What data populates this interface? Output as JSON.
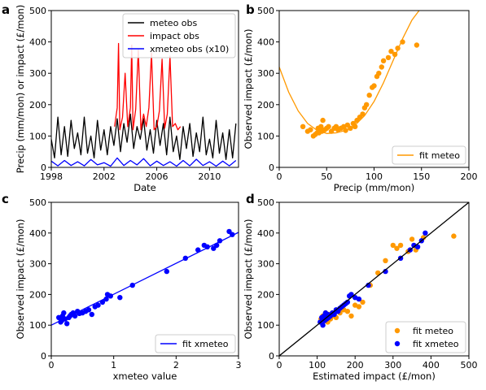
{
  "chart_data": [
    {
      "id": "a",
      "panel_label": "a",
      "type": "line",
      "xlabel": "Date",
      "ylabel": "Precip (mm/mon) or impact (£/mon)",
      "xlim": [
        1998.0,
        2012.2
      ],
      "ylim": [
        0,
        500
      ],
      "xticks": [
        1998,
        2002,
        2006,
        2010
      ],
      "yticks": [
        0,
        100,
        200,
        300,
        400,
        500
      ],
      "legend_position": "top-right",
      "series": [
        {
          "name": "meteo obs",
          "color": "#000000",
          "x": [
            1998.0,
            1998.25,
            1998.5,
            1998.75,
            1999.0,
            1999.25,
            1999.5,
            1999.75,
            2000.0,
            2000.25,
            2000.5,
            2000.75,
            2001.0,
            2001.25,
            2001.5,
            2001.75,
            2002.0,
            2002.25,
            2002.5,
            2002.75,
            2003.0,
            2003.25,
            2003.5,
            2003.75,
            2004.0,
            2004.25,
            2004.5,
            2004.75,
            2005.0,
            2005.25,
            2005.5,
            2005.75,
            2006.0,
            2006.25,
            2006.5,
            2006.75,
            2007.0,
            2007.25,
            2007.5,
            2007.75,
            2008.0,
            2008.25,
            2008.5,
            2008.75,
            2009.0,
            2009.25,
            2009.5,
            2009.75,
            2010.0,
            2010.25,
            2010.5,
            2010.75,
            2011.0,
            2011.25,
            2011.5,
            2011.75,
            2012.0
          ],
          "y": [
            90,
            30,
            160,
            40,
            130,
            35,
            150,
            60,
            110,
            40,
            160,
            45,
            100,
            30,
            150,
            55,
            120,
            40,
            130,
            70,
            155,
            50,
            140,
            80,
            170,
            60,
            130,
            90,
            155,
            55,
            120,
            45,
            150,
            70,
            140,
            40,
            160,
            50,
            100,
            25,
            130,
            60,
            140,
            35,
            110,
            50,
            160,
            40,
            90,
            30,
            150,
            45,
            110,
            25,
            120,
            30,
            140
          ]
        },
        {
          "name": "impact obs",
          "color": "#ff0000",
          "x": [
            2002.8,
            2003.0,
            2003.1,
            2003.2,
            2003.4,
            2003.6,
            2003.8,
            2004.0,
            2004.1,
            2004.2,
            2004.4,
            2004.6,
            2004.8,
            2005.0,
            2005.2,
            2005.4,
            2005.6,
            2005.8,
            2006.0,
            2006.2,
            2006.4,
            2006.6,
            2006.8,
            2007.0,
            2007.2,
            2007.4,
            2007.6,
            2007.8
          ],
          "y": [
            130,
            190,
            395,
            120,
            160,
            300,
            130,
            190,
            390,
            120,
            185,
            375,
            120,
            170,
            130,
            190,
            365,
            120,
            130,
            180,
            345,
            125,
            170,
            355,
            130,
            140,
            120,
            130
          ]
        },
        {
          "name": "xmeteo obs (x10)",
          "color": "#0000ff",
          "x": [
            1998.0,
            1998.5,
            1999.0,
            1999.5,
            2000.0,
            2000.5,
            2001.0,
            2001.5,
            2002.0,
            2002.5,
            2003.0,
            2003.5,
            2004.0,
            2004.5,
            2005.0,
            2005.5,
            2006.0,
            2006.5,
            2007.0,
            2007.5,
            2008.0,
            2008.5,
            2009.0,
            2009.5,
            2010.0,
            2010.5,
            2011.0,
            2011.5,
            2012.0
          ],
          "y": [
            20,
            5,
            22,
            6,
            18,
            5,
            25,
            8,
            15,
            4,
            30,
            6,
            22,
            8,
            28,
            5,
            20,
            6,
            18,
            4,
            22,
            5,
            26,
            6,
            18,
            4,
            20,
            5,
            22
          ]
        }
      ]
    },
    {
      "id": "b",
      "panel_label": "b",
      "type": "scatter",
      "xlabel": "Precip (mm/mon)",
      "ylabel": "Observed impact (£/mon)",
      "xlim": [
        0,
        200
      ],
      "ylim": [
        0,
        500
      ],
      "xticks": [
        0,
        50,
        100,
        150,
        200
      ],
      "yticks": [
        0,
        100,
        200,
        300,
        400,
        500
      ],
      "legend_position": "bottom-right",
      "series": [
        {
          "name": "",
          "color": "#ff9900",
          "x": [
            25,
            30,
            33,
            36,
            38,
            40,
            41,
            42,
            44,
            45,
            46,
            48,
            50,
            52,
            55,
            58,
            60,
            62,
            65,
            68,
            70,
            72,
            75,
            78,
            80,
            82,
            85,
            88,
            90,
            92,
            95,
            98,
            100,
            103,
            105,
            108,
            110,
            115,
            118,
            122,
            125,
            130,
            145
          ],
          "y": [
            130,
            115,
            120,
            100,
            105,
            110,
            125,
            110,
            130,
            115,
            150,
            120,
            125,
            130,
            115,
            125,
            130,
            120,
            125,
            130,
            118,
            135,
            125,
            140,
            130,
            150,
            160,
            170,
            190,
            200,
            230,
            255,
            260,
            290,
            300,
            320,
            340,
            350,
            370,
            360,
            380,
            400,
            390
          ]
        },
        {
          "name": "fit meteo",
          "color": "#ff9900",
          "x": [
            0,
            10,
            20,
            30,
            40,
            50,
            60,
            70,
            80,
            90,
            100,
            110,
            120,
            130,
            140,
            150,
            160
          ],
          "y": [
            320,
            240,
            180,
            140,
            118,
            108,
            110,
            118,
            135,
            165,
            210,
            270,
            340,
            410,
            470,
            510,
            540
          ]
        }
      ]
    },
    {
      "id": "c",
      "panel_label": "c",
      "type": "scatter",
      "xlabel": "xmeteo value",
      "ylabel": "Observed impact (£/mon)",
      "xlim": [
        0,
        3
      ],
      "ylim": [
        0,
        500
      ],
      "xticks": [
        0,
        1,
        2,
        3
      ],
      "yticks": [
        0,
        100,
        200,
        300,
        400,
        500
      ],
      "legend_position": "bottom-right",
      "series": [
        {
          "name": "",
          "color": "#0000ff",
          "x": [
            0.12,
            0.15,
            0.17,
            0.18,
            0.2,
            0.22,
            0.25,
            0.28,
            0.3,
            0.32,
            0.35,
            0.38,
            0.42,
            0.45,
            0.5,
            0.55,
            0.6,
            0.65,
            0.7,
            0.75,
            0.82,
            0.88,
            0.9,
            0.95,
            1.1,
            1.3,
            1.85,
            2.15,
            2.35,
            2.45,
            2.5,
            2.6,
            2.65,
            2.7,
            2.85,
            2.9
          ],
          "y": [
            125,
            110,
            115,
            130,
            140,
            120,
            105,
            125,
            130,
            135,
            140,
            130,
            145,
            138,
            140,
            145,
            150,
            135,
            160,
            165,
            175,
            185,
            200,
            195,
            190,
            230,
            275,
            318,
            345,
            360,
            355,
            350,
            360,
            375,
            405,
            395
          ]
        },
        {
          "name": "fit xmeteo",
          "color": "#0000ff",
          "x": [
            0,
            3
          ],
          "y": [
            100,
            402
          ]
        }
      ]
    },
    {
      "id": "d",
      "panel_label": "d",
      "type": "scatter",
      "xlabel": "Estimated impact (£/mon)",
      "ylabel": "Observed impact (£/mon)",
      "xlim": [
        0,
        500
      ],
      "ylim": [
        0,
        500
      ],
      "xticks": [
        0,
        100,
        200,
        300,
        400,
        500
      ],
      "yticks": [
        0,
        100,
        200,
        300,
        400,
        500
      ],
      "legend_position": "bottom-right",
      "series": [
        {
          "name": "fit meteo",
          "color": "#ff9900",
          "x": [
            110,
            115,
            120,
            122,
            125,
            128,
            130,
            135,
            140,
            150,
            160,
            170,
            180,
            190,
            200,
            210,
            220,
            240,
            260,
            280,
            300,
            310,
            320,
            340,
            350,
            360,
            380,
            460
          ],
          "y": [
            120,
            130,
            115,
            140,
            125,
            110,
            135,
            120,
            130,
            125,
            140,
            150,
            145,
            130,
            165,
            160,
            175,
            230,
            270,
            310,
            360,
            350,
            360,
            340,
            380,
            345,
            385,
            390
          ]
        },
        {
          "name": "fit xmeteo",
          "color": "#0000ff",
          "x": [
            108,
            112,
            115,
            118,
            120,
            122,
            125,
            128,
            130,
            135,
            140,
            145,
            150,
            155,
            160,
            165,
            170,
            175,
            180,
            185,
            190,
            200,
            210,
            235,
            280,
            320,
            345,
            355,
            365,
            375,
            385
          ],
          "y": [
            110,
            125,
            100,
            130,
            115,
            140,
            120,
            135,
            125,
            130,
            140,
            135,
            150,
            145,
            155,
            160,
            165,
            170,
            175,
            195,
            200,
            190,
            185,
            230,
            275,
            318,
            345,
            360,
            355,
            375,
            400
          ]
        },
        {
          "name": "",
          "color": "#000000",
          "x": [
            0,
            500
          ],
          "y": [
            0,
            500
          ]
        }
      ]
    }
  ]
}
